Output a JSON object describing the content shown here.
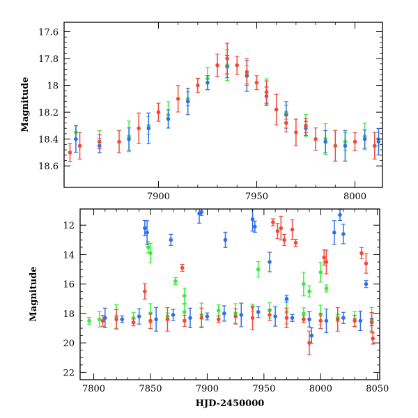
{
  "chart_data": [
    {
      "type": "scatter",
      "panel": "top",
      "xlabel": "",
      "ylabel": "Magnitude",
      "xlim": [
        7852,
        8014
      ],
      "ylim": [
        18.76,
        17.53
      ],
      "y_inverted": true,
      "xticks": [
        7900,
        7950,
        8000
      ],
      "yticks": [
        17.6,
        17.8,
        18,
        18.2,
        18.4,
        18.6
      ],
      "xtick_labels": [
        "7900",
        "7950",
        "8000"
      ],
      "ytick_labels": [
        "17.6",
        "17.8",
        "18",
        "18.2",
        "18.4",
        "18.6"
      ],
      "error_bars": true,
      "series": [
        {
          "color": "#3fe83f",
          "x": [
            7858,
            7870,
            7885,
            7895,
            7905,
            7915,
            7925,
            7935,
            7945,
            7955,
            7965,
            7975,
            7985,
            7995,
            8005,
            8012
          ],
          "y": [
            18.35,
            18.42,
            18.38,
            18.3,
            18.22,
            18.1,
            17.95,
            17.85,
            17.92,
            18.05,
            18.2,
            18.3,
            18.4,
            18.42,
            18.38,
            18.4
          ]
        },
        {
          "color": "#2f6fe8",
          "x": [
            7858,
            7870,
            7885,
            7895,
            7905,
            7915,
            7925,
            7935,
            7945,
            7955,
            7965,
            7975,
            7985,
            7995,
            8005,
            8012
          ],
          "y": [
            18.4,
            18.45,
            18.4,
            18.32,
            18.25,
            18.12,
            17.98,
            17.86,
            17.93,
            18.08,
            18.22,
            18.32,
            18.42,
            18.45,
            18.4,
            18.42
          ]
        },
        {
          "color": "#f04a3a",
          "x": [
            7855,
            7860,
            7870,
            7880,
            7890,
            7900,
            7910,
            7920,
            7930,
            7935,
            7940,
            7945,
            7950,
            7955,
            7960,
            7965,
            7970,
            7975,
            7980,
            7990,
            8000,
            8010
          ],
          "y": [
            18.5,
            18.45,
            18.42,
            18.42,
            18.32,
            18.2,
            18.1,
            18.0,
            17.85,
            17.8,
            17.85,
            17.9,
            17.98,
            18.05,
            18.18,
            18.28,
            18.35,
            18.3,
            18.4,
            18.45,
            18.42,
            18.45
          ]
        }
      ]
    },
    {
      "type": "scatter",
      "panel": "bottom",
      "xlabel": "HJD-2450000",
      "ylabel": "Magnitude",
      "xlim": [
        7788,
        8052
      ],
      "ylim": [
        22.5,
        10.9
      ],
      "y_inverted": true,
      "xticks": [
        7800,
        7850,
        7900,
        7950,
        8000,
        8050
      ],
      "yticks": [
        12,
        14,
        16,
        18,
        20,
        22
      ],
      "xtick_labels": [
        "7800",
        "7850",
        "7900",
        "7950",
        "8000",
        "8050"
      ],
      "ytick_labels": [
        "12",
        "14",
        "16",
        "18",
        "20",
        "22"
      ],
      "error_bars": true,
      "series": [
        {
          "color": "#3fe83f",
          "x": [
            7796,
            7805,
            7820,
            7835,
            7850,
            7865,
            7880,
            7895,
            7910,
            7925,
            7940,
            7955,
            7970,
            7985,
            8000,
            8015,
            8030,
            8045,
            7848,
            7850,
            7872,
            7945,
            7985,
            7990,
            8000,
            8005,
            7880
          ],
          "y": [
            18.5,
            18.4,
            18.2,
            18.3,
            18.0,
            18.2,
            17.9,
            18.1,
            17.8,
            18.0,
            17.6,
            17.8,
            17.9,
            18.0,
            18.1,
            18.3,
            18.4,
            18.4,
            13.5,
            13.9,
            15.8,
            15.0,
            16.0,
            16.5,
            15.2,
            16.3,
            16.8
          ]
        },
        {
          "color": "#2f6fe8",
          "x": [
            7810,
            7825,
            7840,
            7855,
            7870,
            7885,
            7900,
            7915,
            7930,
            7945,
            7960,
            7975,
            7990,
            8005,
            8020,
            8035,
            8045,
            7845,
            7847,
            7868,
            7893,
            7895,
            7916,
            7940,
            7942,
            7955,
            7970,
            7992,
            8012,
            8017,
            8020,
            8040
          ],
          "y": [
            18.3,
            18.4,
            18.2,
            18.4,
            18.1,
            18.3,
            18.2,
            18.0,
            18.1,
            17.9,
            18.2,
            18.3,
            18.4,
            18.5,
            18.3,
            18.5,
            18.6,
            12.2,
            12.5,
            13.0,
            11.2,
            11.1,
            13.0,
            11.6,
            12.1,
            14.5,
            17.0,
            19.5,
            12.5,
            11.3,
            12.6,
            16.0
          ]
        },
        {
          "color": "#f04a3a",
          "x": [
            7808,
            7820,
            7835,
            7850,
            7865,
            7880,
            7895,
            7910,
            7925,
            7940,
            7955,
            7970,
            7985,
            8000,
            8015,
            8030,
            8045,
            7958,
            7962,
            7965,
            7968,
            7975,
            7978,
            8003,
            8005,
            8036,
            8040,
            7878,
            7845,
            7990,
            8046
          ],
          "y": [
            18.5,
            18.4,
            18.6,
            18.5,
            18.4,
            18.5,
            18.3,
            18.4,
            18.2,
            18.3,
            18.1,
            18.3,
            18.4,
            18.5,
            18.4,
            18.5,
            18.6,
            11.8,
            12.4,
            12.2,
            13.0,
            12.3,
            13.2,
            14.2,
            14.5,
            13.9,
            14.6,
            14.9,
            16.5,
            20.0,
            19.7
          ]
        }
      ]
    }
  ]
}
